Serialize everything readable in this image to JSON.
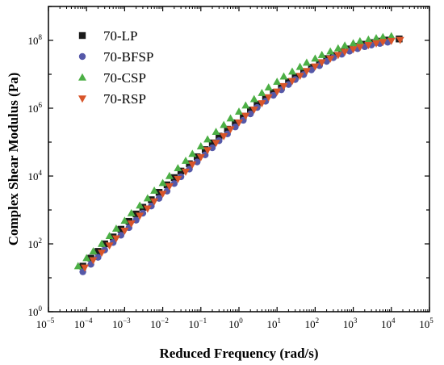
{
  "chart_data": {
    "type": "scatter",
    "title": "",
    "xlabel": "Reduced Frequency (rad/s)",
    "ylabel": "Complex Shear Modulus (Pa)",
    "xscale": "log",
    "yscale": "log",
    "xlim": [
      1e-05,
      100000.0
    ],
    "ylim": [
      1,
      1000000000.0
    ],
    "x_ticks": [
      {
        "base": "10",
        "exp": "−5"
      },
      {
        "base": "10",
        "exp": "−4"
      },
      {
        "base": "10",
        "exp": "−3"
      },
      {
        "base": "10",
        "exp": "−2"
      },
      {
        "base": "10",
        "exp": "−1"
      },
      {
        "base": "10",
        "exp": "0"
      },
      {
        "base": "10",
        "exp": "1"
      },
      {
        "base": "10",
        "exp": "2"
      },
      {
        "base": "10",
        "exp": "3"
      },
      {
        "base": "10",
        "exp": "4"
      },
      {
        "base": "10",
        "exp": "5"
      }
    ],
    "y_ticks": [
      {
        "base": "10",
        "exp": "0"
      },
      {
        "base": "10",
        "exp": "2"
      },
      {
        "base": "10",
        "exp": "4"
      },
      {
        "base": "10",
        "exp": "6"
      },
      {
        "base": "10",
        "exp": "8"
      }
    ],
    "grid": false,
    "legend_position": "top-left",
    "series": [
      {
        "name": "70-LP",
        "marker": "square",
        "color": "#1a1a1a",
        "points": [
          [
            8e-05,
            22
          ],
          [
            0.00013,
            38
          ],
          [
            0.0002,
            60
          ],
          [
            0.0003,
            100
          ],
          [
            0.0005,
            160
          ],
          [
            0.0008,
            270
          ],
          [
            0.0013,
            460
          ],
          [
            0.002,
            760
          ],
          [
            0.003,
            1200
          ],
          [
            0.005,
            2000
          ],
          [
            0.008,
            3300
          ],
          [
            0.013,
            5500
          ],
          [
            0.02,
            9000
          ],
          [
            0.03,
            14000
          ],
          [
            0.05,
            23000
          ],
          [
            0.08,
            37000
          ],
          [
            0.13,
            60000
          ],
          [
            0.2,
            95000
          ],
          [
            0.3,
            150000
          ],
          [
            0.5,
            240000
          ],
          [
            0.8,
            370000
          ],
          [
            1.3,
            580000
          ],
          [
            2,
            880000
          ],
          [
            3,
            1300000
          ],
          [
            5,
            2000000
          ],
          [
            8,
            2900000
          ],
          [
            13,
            4200000
          ],
          [
            20,
            6000000
          ],
          [
            30,
            8500000
          ],
          [
            50,
            12000000
          ],
          [
            80,
            16000000
          ],
          [
            130,
            22000000
          ],
          [
            200,
            29000000
          ],
          [
            300,
            36000000
          ],
          [
            500,
            46000000
          ],
          [
            800,
            56000000
          ],
          [
            1300,
            67000000
          ],
          [
            2000,
            77000000
          ],
          [
            3000,
            86000000
          ],
          [
            5000,
            95000000
          ],
          [
            8000,
            102000000
          ],
          [
            16000,
            110000000
          ]
        ]
      },
      {
        "name": "70-BFSP",
        "marker": "circle",
        "color": "#5558a8",
        "points": [
          [
            8e-05,
            15
          ],
          [
            0.00013,
            25
          ],
          [
            0.0002,
            40
          ],
          [
            0.0003,
            66
          ],
          [
            0.0005,
            110
          ],
          [
            0.0008,
            180
          ],
          [
            0.0013,
            300
          ],
          [
            0.002,
            500
          ],
          [
            0.003,
            800
          ],
          [
            0.005,
            1300
          ],
          [
            0.008,
            2200
          ],
          [
            0.013,
            3600
          ],
          [
            0.02,
            6000
          ],
          [
            0.03,
            9500
          ],
          [
            0.05,
            16000
          ],
          [
            0.08,
            26000
          ],
          [
            0.13,
            42000
          ],
          [
            0.2,
            68000
          ],
          [
            0.3,
            110000
          ],
          [
            0.5,
            175000
          ],
          [
            0.8,
            280000
          ],
          [
            1.3,
            440000
          ],
          [
            2,
            680000
          ],
          [
            3,
            1050000
          ],
          [
            5,
            1600000
          ],
          [
            8,
            2400000
          ],
          [
            13,
            3500000
          ],
          [
            20,
            5000000
          ],
          [
            30,
            7000000
          ],
          [
            50,
            9800000
          ],
          [
            80,
            13500000
          ],
          [
            130,
            18000000
          ],
          [
            200,
            24000000
          ],
          [
            300,
            31000000
          ],
          [
            500,
            39000000
          ],
          [
            800,
            48000000
          ],
          [
            1300,
            57000000
          ],
          [
            2000,
            65000000
          ],
          [
            3000,
            73000000
          ],
          [
            5000,
            81000000
          ],
          [
            8000,
            88000000
          ]
        ]
      },
      {
        "name": "70-CSP",
        "marker": "triangle-up",
        "color": "#4caf45",
        "points": [
          [
            6e-05,
            22
          ],
          [
            0.0001,
            38
          ],
          [
            0.00015,
            60
          ],
          [
            0.00025,
            100
          ],
          [
            0.0004,
            170
          ],
          [
            0.0006,
            280
          ],
          [
            0.001,
            480
          ],
          [
            0.0015,
            800
          ],
          [
            0.0025,
            1350
          ],
          [
            0.004,
            2200
          ],
          [
            0.006,
            3700
          ],
          [
            0.01,
            6200
          ],
          [
            0.015,
            10000
          ],
          [
            0.025,
            17000
          ],
          [
            0.04,
            28000
          ],
          [
            0.06,
            45000
          ],
          [
            0.1,
            75000
          ],
          [
            0.15,
            120000
          ],
          [
            0.25,
            200000
          ],
          [
            0.4,
            320000
          ],
          [
            0.6,
            500000
          ],
          [
            1,
            790000
          ],
          [
            1.5,
            1200000
          ],
          [
            2.5,
            1850000
          ],
          [
            4,
            2800000
          ],
          [
            6,
            4100000
          ],
          [
            10,
            6000000
          ],
          [
            15,
            8600000
          ],
          [
            25,
            12000000
          ],
          [
            40,
            16500000
          ],
          [
            60,
            22000000
          ],
          [
            100,
            29000000
          ],
          [
            150,
            37000000
          ],
          [
            250,
            47000000
          ],
          [
            400,
            58000000
          ],
          [
            600,
            70000000
          ],
          [
            1000,
            82000000
          ],
          [
            1500,
            94000000
          ],
          [
            2500,
            105000000
          ],
          [
            4000,
            116000000
          ],
          [
            6000,
            125000000
          ],
          [
            10000,
            133000000
          ]
        ]
      },
      {
        "name": "70-RSP",
        "marker": "triangle-down",
        "color": "#d8552a",
        "points": [
          [
            9e-05,
            20
          ],
          [
            0.00015,
            33
          ],
          [
            0.00025,
            55
          ],
          [
            0.0004,
            90
          ],
          [
            0.0006,
            145
          ],
          [
            0.001,
            245
          ],
          [
            0.0015,
            400
          ],
          [
            0.0025,
            680
          ],
          [
            0.004,
            1100
          ],
          [
            0.006,
            1800
          ],
          [
            0.01,
            3000
          ],
          [
            0.015,
            5000
          ],
          [
            0.025,
            8200
          ],
          [
            0.04,
            13500
          ],
          [
            0.06,
            22000
          ],
          [
            0.1,
            36000
          ],
          [
            0.15,
            58000
          ],
          [
            0.25,
            95000
          ],
          [
            0.4,
            150000
          ],
          [
            0.6,
            240000
          ],
          [
            1,
            380000
          ],
          [
            1.5,
            600000
          ],
          [
            2.5,
            920000
          ],
          [
            4,
            1400000
          ],
          [
            6,
            2100000
          ],
          [
            10,
            3100000
          ],
          [
            15,
            4500000
          ],
          [
            25,
            6400000
          ],
          [
            40,
            9000000
          ],
          [
            60,
            12500000
          ],
          [
            100,
            17000000
          ],
          [
            150,
            22500000
          ],
          [
            250,
            29000000
          ],
          [
            400,
            37000000
          ],
          [
            600,
            46000000
          ],
          [
            1000,
            55000000
          ],
          [
            1500,
            64000000
          ],
          [
            2500,
            73000000
          ],
          [
            4000,
            82000000
          ],
          [
            6000,
            90000000
          ],
          [
            10000,
            97000000
          ],
          [
            17000,
            103000000
          ]
        ]
      }
    ]
  }
}
